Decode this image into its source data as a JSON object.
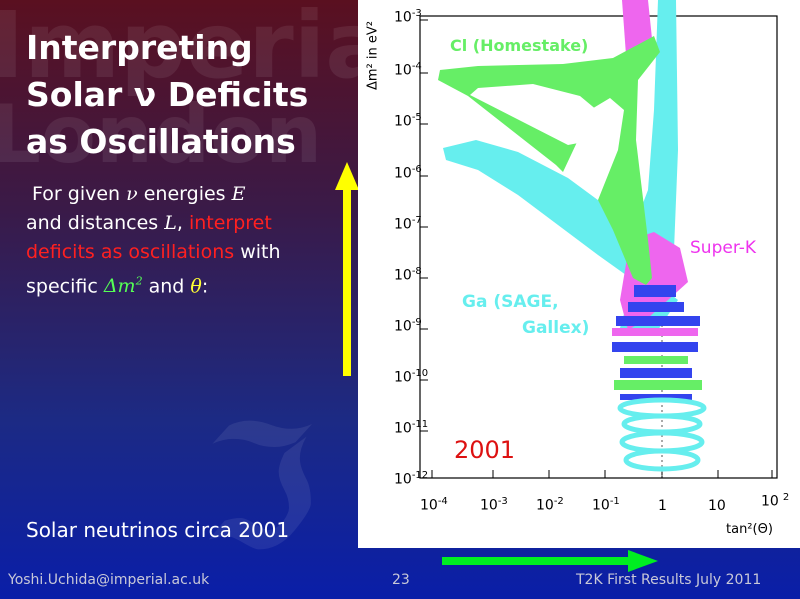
{
  "slide": {
    "title_lines": [
      "Interpreting",
      "Solar ν Deficits",
      "as Oscillations"
    ],
    "body": {
      "p1": "For given ",
      "nu": "ν",
      "p2": " energies ",
      "E": "E",
      "p3": "and distances ",
      "L": "L",
      "p4": ", ",
      "highlight": "interpret deficits as oscillations",
      "p5": " with specific ",
      "dm2": "Δm",
      "dm2_sup": "2",
      "p6": " and ",
      "theta": "θ",
      "p7": ":"
    },
    "caption": "Solar neutrinos circa 2001"
  },
  "plot": {
    "y_label": "Δm² in eV²",
    "y_ticks": [
      {
        "base": "10",
        "exp": "-3"
      },
      {
        "base": "10",
        "exp": "-4"
      },
      {
        "base": "10",
        "exp": "-5"
      },
      {
        "base": "10",
        "exp": "-6"
      },
      {
        "base": "10",
        "exp": "-7"
      },
      {
        "base": "10",
        "exp": "-8"
      },
      {
        "base": "10",
        "exp": "-9"
      },
      {
        "base": "10",
        "exp": "-10"
      },
      {
        "base": "10",
        "exp": "-11"
      },
      {
        "base": "10",
        "exp": "-12"
      }
    ],
    "x_ticks": [
      {
        "base": "10",
        "exp": "-4"
      },
      {
        "base": "10",
        "exp": "-3"
      },
      {
        "base": "10",
        "exp": "-2"
      },
      {
        "base": "10",
        "exp": "-1"
      },
      {
        "base": "1",
        "exp": ""
      },
      {
        "base": "10",
        "exp": ""
      },
      {
        "base": "10",
        "exp": "2"
      }
    ],
    "x_label": "tan²(Θ)",
    "labels": {
      "cl": "Cl (Homestake)",
      "superk": "Super-K",
      "ga1": "Ga (SAGE,",
      "ga2": "Gallex)",
      "year": "2001"
    },
    "colors": {
      "cl": "#66ee66",
      "superk": "#ee66ee",
      "ga": "#66eeee",
      "year": "#dd1111"
    }
  },
  "watermarks": {
    "a": "Imperial",
    "b": "London"
  },
  "footer": {
    "left": "Yoshi.Uchida@imperial.ac.uk",
    "center": "23",
    "right": "T2K First Results July 2011"
  }
}
